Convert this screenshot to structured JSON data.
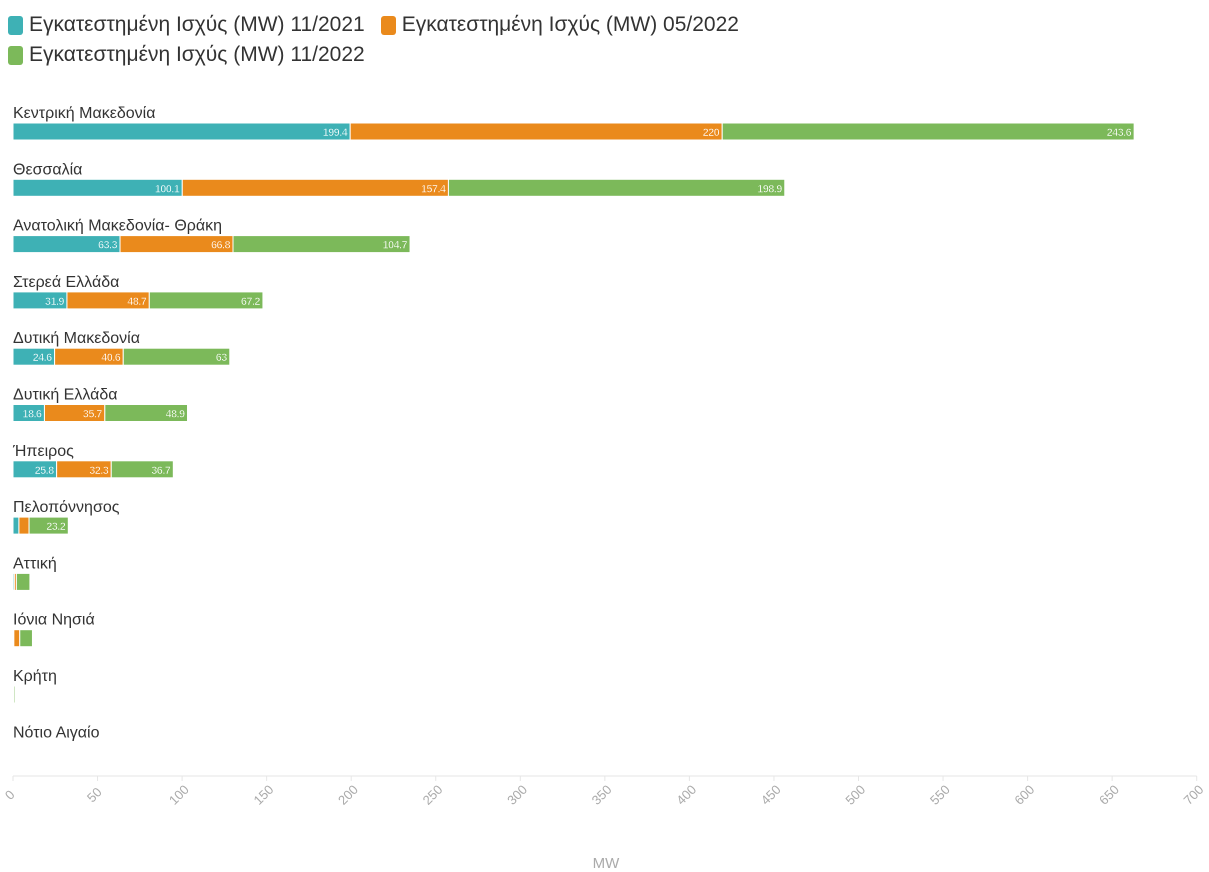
{
  "chart_data": {
    "type": "bar",
    "orientation": "horizontal",
    "xlabel": "MW",
    "xlim": [
      0,
      700
    ],
    "xticks": [
      "0",
      "50",
      "100",
      "150",
      "200",
      "250",
      "300",
      "350",
      "400",
      "450",
      "500",
      "550",
      "600",
      "650",
      "700"
    ],
    "legend_position": "top-left",
    "stacked": true,
    "categories": [
      "Κεντρική Μακεδονία",
      "Θεσσαλία",
      "Ανατολική Μακεδονία- Θράκη",
      "Στερεά Ελλάδα",
      "Δυτική Μακεδονία",
      "Δυτική Ελλάδα",
      "Ήπειρος",
      "Πελοπόννησος",
      "Αττική",
      "Ιόνια Νησιά",
      "Κρήτη",
      "Νότιο Αιγαίο"
    ],
    "series": [
      {
        "name": "Εγκατεστημένη Ισχύς (MW) 11/2021",
        "color": "#3eb1b5",
        "values": [
          199.4,
          100.1,
          63.3,
          31.9,
          24.6,
          18.6,
          25.8,
          3.5,
          0.8,
          0.5,
          0.3,
          0
        ],
        "labels": [
          "199.4",
          "100.1",
          "63.3",
          "31.9",
          "24.6",
          "18.6",
          "25.8",
          "",
          "",
          "",
          "",
          ""
        ]
      },
      {
        "name": "Εγκατεστημένη Ισχύς (MW) 05/2022",
        "color": "#ea8a1c",
        "values": [
          220,
          157.4,
          66.8,
          48.7,
          40.6,
          35.7,
          32.3,
          6,
          1.2,
          3.5,
          0.2,
          0
        ],
        "labels": [
          "220",
          "157.4",
          "66.8",
          "48.7",
          "40.6",
          "35.7",
          "32.3",
          "",
          "",
          "",
          "",
          ""
        ]
      },
      {
        "name": "Εγκατεστημένη Ισχύς (MW) 11/2022",
        "color": "#7cb95a",
        "values": [
          243.6,
          198.9,
          104.7,
          67.2,
          63,
          48.9,
          36.7,
          23.2,
          8,
          7.5,
          0.8,
          0
        ],
        "labels": [
          "243.6",
          "198.9",
          "104.7",
          "67.2",
          "63",
          "48.9",
          "36.7",
          "23.2",
          "",
          "",
          "",
          ""
        ]
      }
    ]
  }
}
